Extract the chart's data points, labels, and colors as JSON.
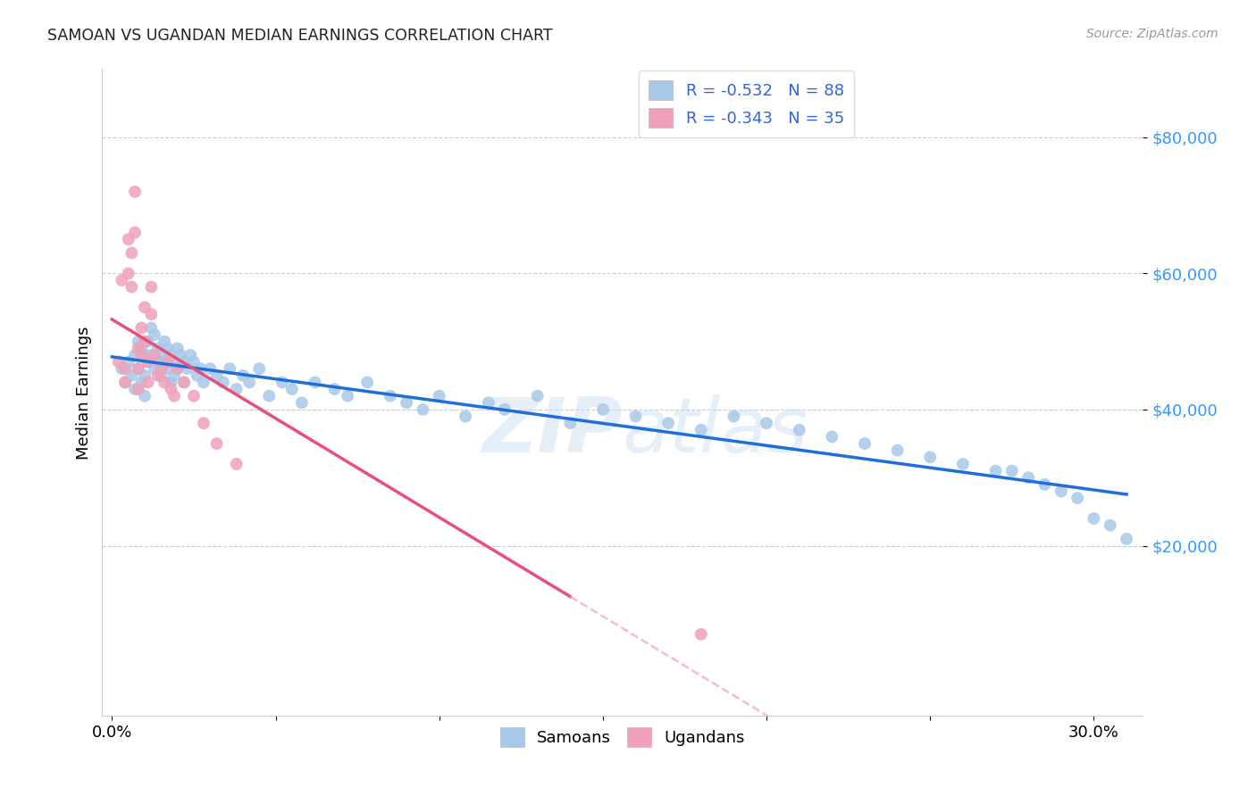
{
  "title": "SAMOAN VS UGANDAN MEDIAN EARNINGS CORRELATION CHART",
  "source": "Source: ZipAtlas.com",
  "ylabel": "Median Earnings",
  "y_ticks": [
    20000,
    40000,
    60000,
    80000
  ],
  "y_tick_labels": [
    "$20,000",
    "$40,000",
    "$60,000",
    "$80,000"
  ],
  "x_ticks": [
    0.0,
    0.05,
    0.1,
    0.15,
    0.2,
    0.25,
    0.3
  ],
  "x_tick_labels": [
    "0.0%",
    "",
    "",
    "",
    "",
    "",
    "30.0%"
  ],
  "legend_line1": "R = -0.532   N = 88",
  "legend_line2": "R = -0.343   N = 35",
  "blue_color": "#A8C8E8",
  "pink_color": "#F0A0B8",
  "blue_line_color": "#1E6FD9",
  "pink_line_color": "#E8507A",
  "pink_dash_color": "#F0A0C0",
  "watermark_color": "#C8DDF0",
  "background_color": "#FFFFFF",
  "ylim": [
    -5000,
    90000
  ],
  "xlim": [
    -0.003,
    0.315
  ],
  "samoans_x": [
    0.003,
    0.004,
    0.005,
    0.006,
    0.007,
    0.007,
    0.008,
    0.008,
    0.009,
    0.009,
    0.01,
    0.01,
    0.01,
    0.011,
    0.011,
    0.012,
    0.012,
    0.013,
    0.013,
    0.014,
    0.014,
    0.015,
    0.015,
    0.016,
    0.016,
    0.017,
    0.017,
    0.018,
    0.018,
    0.019,
    0.019,
    0.02,
    0.02,
    0.021,
    0.022,
    0.022,
    0.023,
    0.024,
    0.025,
    0.026,
    0.027,
    0.028,
    0.03,
    0.032,
    0.034,
    0.036,
    0.038,
    0.04,
    0.042,
    0.045,
    0.048,
    0.052,
    0.055,
    0.058,
    0.062,
    0.068,
    0.072,
    0.078,
    0.085,
    0.09,
    0.095,
    0.1,
    0.108,
    0.115,
    0.12,
    0.13,
    0.14,
    0.15,
    0.16,
    0.17,
    0.18,
    0.19,
    0.2,
    0.21,
    0.22,
    0.23,
    0.24,
    0.25,
    0.26,
    0.27,
    0.275,
    0.28,
    0.285,
    0.29,
    0.295,
    0.3,
    0.305,
    0.31
  ],
  "samoans_y": [
    46000,
    44000,
    47000,
    45000,
    48000,
    43000,
    50000,
    46000,
    49000,
    44000,
    48000,
    45000,
    42000,
    50000,
    47000,
    52000,
    48000,
    51000,
    46000,
    49000,
    47000,
    48000,
    45000,
    50000,
    47000,
    49000,
    46000,
    48000,
    44000,
    47000,
    45000,
    49000,
    46000,
    48000,
    47000,
    44000,
    46000,
    48000,
    47000,
    45000,
    46000,
    44000,
    46000,
    45000,
    44000,
    46000,
    43000,
    45000,
    44000,
    46000,
    42000,
    44000,
    43000,
    41000,
    44000,
    43000,
    42000,
    44000,
    42000,
    41000,
    40000,
    42000,
    39000,
    41000,
    40000,
    42000,
    38000,
    40000,
    39000,
    38000,
    37000,
    39000,
    38000,
    37000,
    36000,
    35000,
    34000,
    33000,
    32000,
    31000,
    31000,
    30000,
    29000,
    28000,
    27000,
    24000,
    23000,
    21000
  ],
  "ugandans_x": [
    0.002,
    0.003,
    0.004,
    0.004,
    0.005,
    0.005,
    0.006,
    0.006,
    0.007,
    0.007,
    0.008,
    0.008,
    0.008,
    0.009,
    0.009,
    0.01,
    0.01,
    0.011,
    0.011,
    0.012,
    0.012,
    0.013,
    0.014,
    0.015,
    0.016,
    0.017,
    0.018,
    0.019,
    0.02,
    0.022,
    0.025,
    0.028,
    0.032,
    0.038,
    0.18
  ],
  "ugandans_y": [
    47000,
    59000,
    46000,
    44000,
    65000,
    60000,
    63000,
    58000,
    72000,
    66000,
    49000,
    46000,
    43000,
    52000,
    48000,
    55000,
    50000,
    47000,
    44000,
    58000,
    54000,
    48000,
    45000,
    46000,
    44000,
    47000,
    43000,
    42000,
    46000,
    44000,
    42000,
    38000,
    35000,
    32000,
    7000
  ]
}
